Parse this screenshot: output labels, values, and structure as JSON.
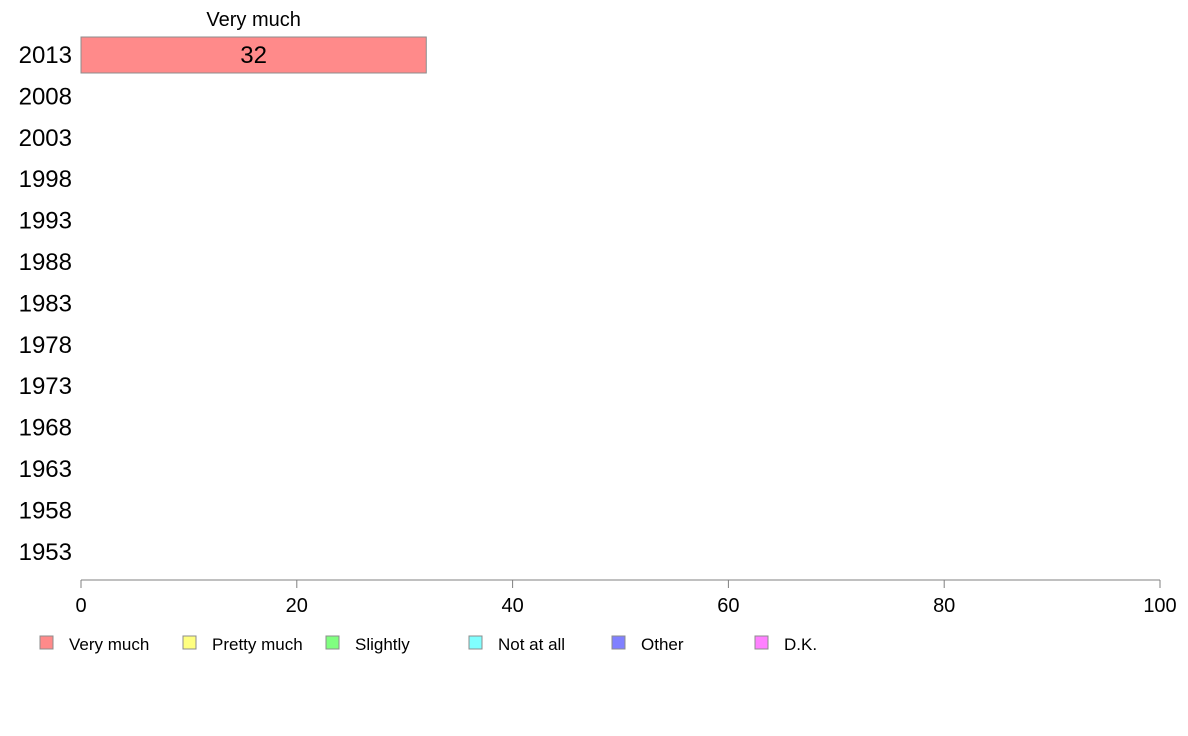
{
  "chart_data": {
    "type": "bar",
    "orientation": "horizontal",
    "stacked": true,
    "categories": [
      "2013",
      "2008",
      "2003",
      "1998",
      "1993",
      "1988",
      "1983",
      "1978",
      "1973",
      "1968",
      "1963",
      "1958",
      "1953"
    ],
    "series": [
      {
        "name": "Very much",
        "color": "#ff8a8a",
        "values": [
          32,
          null,
          null,
          null,
          null,
          null,
          null,
          null,
          null,
          null,
          null,
          null,
          null
        ]
      },
      {
        "name": "Pretty much",
        "color": "#ffff80",
        "values": [
          null,
          null,
          null,
          null,
          null,
          null,
          null,
          null,
          null,
          null,
          null,
          null,
          null
        ]
      },
      {
        "name": "Slightly",
        "color": "#80ff80",
        "values": [
          null,
          null,
          null,
          null,
          null,
          null,
          null,
          null,
          null,
          null,
          null,
          null,
          null
        ]
      },
      {
        "name": "Not at all",
        "color": "#80ffff",
        "values": [
          null,
          null,
          null,
          null,
          null,
          null,
          null,
          null,
          null,
          null,
          null,
          null,
          null
        ]
      },
      {
        "name": "Other",
        "color": "#8080ff",
        "values": [
          null,
          null,
          null,
          null,
          null,
          null,
          null,
          null,
          null,
          null,
          null,
          null,
          null
        ]
      },
      {
        "name": "D.K.",
        "color": "#ff80ff",
        "values": [
          null,
          null,
          null,
          null,
          null,
          null,
          null,
          null,
          null,
          null,
          null,
          null,
          null
        ]
      }
    ],
    "segment_header": "Very much",
    "xlim": [
      0,
      100
    ],
    "xticks": [
      0,
      20,
      40,
      60,
      80,
      100
    ],
    "grid": false,
    "legend": "bottom"
  }
}
